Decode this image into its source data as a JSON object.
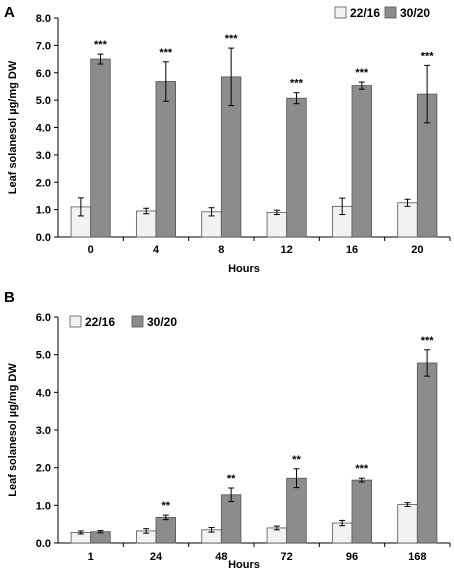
{
  "chart_data": [
    {
      "type": "bar",
      "panel_label": "A",
      "xlabel": "Hours",
      "ylabel": "Leaf solanesol  µg/mg DW",
      "categories": [
        "0",
        "4",
        "8",
        "12",
        "16",
        "20"
      ],
      "ylim": [
        0,
        8
      ],
      "yticks": [
        "0.0",
        "1.0",
        "2.0",
        "3.0",
        "4.0",
        "5.0",
        "6.0",
        "7.0",
        "8.0"
      ],
      "grid": false,
      "legend_position": "top-right",
      "series": [
        {
          "name": "22/16",
          "color": "#f2f2f2",
          "values": [
            1.1,
            0.95,
            0.92,
            0.9,
            1.12,
            1.25
          ],
          "errors": [
            0.33,
            0.1,
            0.15,
            0.08,
            0.3,
            0.13
          ]
        },
        {
          "name": "30/20",
          "color": "#8c8c8c",
          "values": [
            6.5,
            5.68,
            5.85,
            5.07,
            5.53,
            5.22
          ],
          "errors": [
            0.18,
            0.72,
            1.05,
            0.2,
            0.13,
            1.05
          ]
        }
      ],
      "annotations": [
        "***",
        "***",
        "***",
        "***",
        "***",
        "***"
      ]
    },
    {
      "type": "bar",
      "panel_label": "B",
      "xlabel": "Hours",
      "ylabel": "Leaf solanesol  µg/mg DW",
      "categories": [
        "1",
        "24",
        "48",
        "72",
        "96",
        "168"
      ],
      "ylim": [
        0,
        6
      ],
      "yticks": [
        "0.0",
        "1.0",
        "2.0",
        "3.0",
        "4.0",
        "5.0",
        "6.0"
      ],
      "grid": false,
      "legend_position": "top-left",
      "series": [
        {
          "name": "22/16",
          "color": "#f2f2f2",
          "values": [
            0.28,
            0.32,
            0.35,
            0.4,
            0.53,
            1.02
          ],
          "errors": [
            0.04,
            0.06,
            0.06,
            0.05,
            0.07,
            0.05
          ]
        },
        {
          "name": "30/20",
          "color": "#8c8c8c",
          "values": [
            0.3,
            0.68,
            1.28,
            1.72,
            1.67,
            4.78
          ],
          "errors": [
            0.03,
            0.06,
            0.18,
            0.25,
            0.05,
            0.35
          ]
        }
      ],
      "annotations": [
        "",
        "**",
        "**",
        "**",
        "***",
        "***"
      ]
    }
  ]
}
